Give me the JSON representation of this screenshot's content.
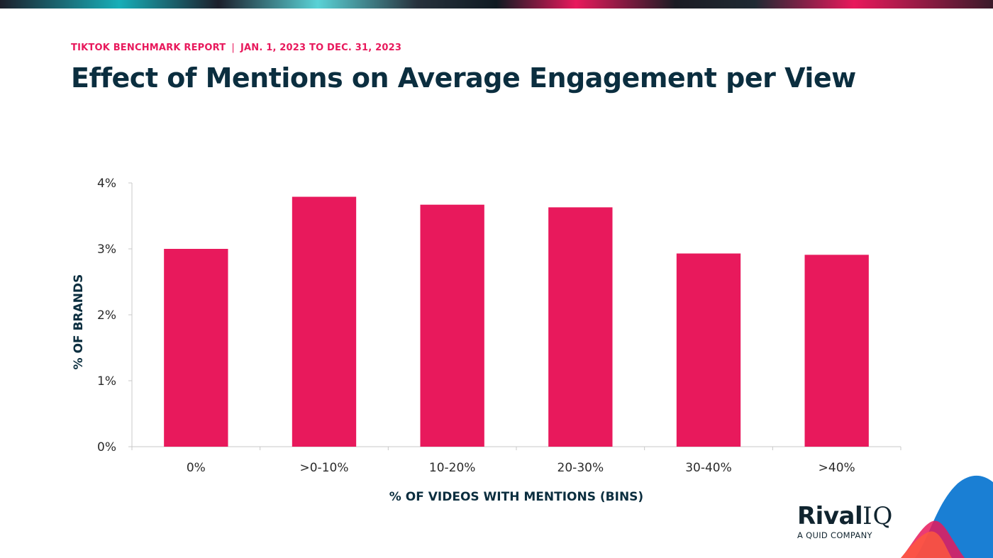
{
  "header": {
    "kicker_left": "TIKTOK BENCHMARK REPORT",
    "kicker_separator": "|",
    "kicker_right": "JAN. 1, 2023 TO DEC. 31, 2023",
    "title": "Effect of Mentions on Average Engagement per View"
  },
  "brand": {
    "name_main": "Rival",
    "name_suffix": "IQ",
    "tagline": "A QUID COMPANY",
    "colors": [
      "#1a7fd4",
      "#e8195c",
      "#ff5a3c"
    ]
  },
  "chart_data": {
    "type": "bar",
    "categories": [
      "0%",
      ">0-10%",
      "10-20%",
      "20-30%",
      "30-40%",
      ">40%"
    ],
    "values": [
      3.0,
      3.79,
      3.67,
      3.63,
      2.93,
      2.91
    ],
    "ylim": [
      0,
      4
    ],
    "yticks": [
      0,
      1,
      2,
      3,
      4
    ],
    "ytick_labels": [
      "0%",
      "1%",
      "2%",
      "3%",
      "4%"
    ],
    "xlabel": "% OF VIDEOS WITH MENTIONS (BINS)",
    "ylabel": "% OF BRANDS",
    "bar_color": "#e8195c",
    "grid": false,
    "legend": "none"
  }
}
